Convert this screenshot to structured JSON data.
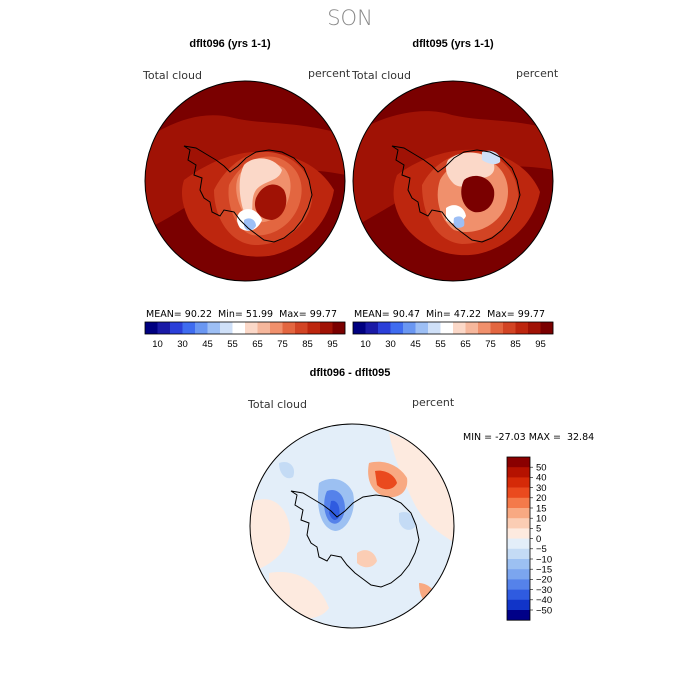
{
  "page": {
    "season": "SON"
  },
  "colors": {
    "seq": [
      "#000080",
      "#1a1aa6",
      "#2b3fd9",
      "#3f6cf0",
      "#6a97f2",
      "#9dbff5",
      "#cfe0f8",
      "#ffffff",
      "#fbd8c8",
      "#f6b79c",
      "#f0906c",
      "#e36640",
      "#d24424",
      "#bd260e",
      "#a01205",
      "#7a0000"
    ],
    "diff": [
      "#8a0000",
      "#b51200",
      "#d52a08",
      "#ea4a1e",
      "#f47a4a",
      "#f8a982",
      "#fbcdb4",
      "#fdeadf",
      "#e3eef9",
      "#c4dbf5",
      "#9cc0f2",
      "#7ba5ef",
      "#5582ea",
      "#2f5be0",
      "#1134c8",
      "#000088"
    ]
  },
  "chart_data": [
    {
      "type": "heatmap",
      "title": "dflt096 (yrs 1-1)",
      "field_label": "Total cloud",
      "units": "percent",
      "projection": "south polar stereographic",
      "stats": {
        "mean_label": "MEAN=",
        "mean": "90.22",
        "min_label": "Min=",
        "min": "51.99",
        "max_label": "Max=",
        "max": "99.77"
      },
      "colorbar": {
        "orientation": "horizontal",
        "tick_labels": [
          "10",
          "30",
          "45",
          "55",
          "65",
          "75",
          "85",
          "95"
        ]
      }
    },
    {
      "type": "heatmap",
      "title": "dflt095 (yrs 1-1)",
      "field_label": "Total cloud",
      "units": "percent",
      "projection": "south polar stereographic",
      "stats": {
        "mean_label": "MEAN=",
        "mean": "90.47",
        "min_label": "Min=",
        "min": "47.22",
        "max_label": "Max=",
        "max": "99.77"
      },
      "colorbar": {
        "orientation": "horizontal",
        "tick_labels": [
          "10",
          "30",
          "45",
          "55",
          "65",
          "75",
          "85",
          "95"
        ]
      }
    },
    {
      "type": "heatmap",
      "title": "dflt096 - dflt095",
      "field_label": "Total cloud",
      "units": "percent",
      "projection": "south polar stereographic",
      "stats_text": "MIN = -27.03 MAX =  32.84",
      "colorbar": {
        "orientation": "vertical",
        "tick_labels": [
          "50",
          "40",
          "30",
          "20",
          "15",
          "10",
          "5",
          "0",
          "−5",
          "−10",
          "−15",
          "−20",
          "−30",
          "−40",
          "−50"
        ]
      }
    }
  ]
}
